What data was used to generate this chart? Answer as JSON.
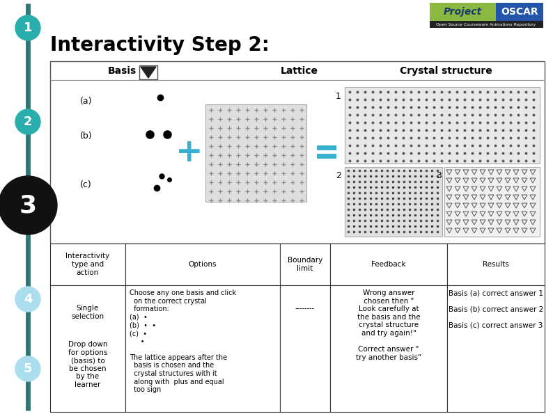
{
  "title": "Interactivity Step 2:",
  "bg_color": "#ffffff",
  "teal_line": "#2a8a7a",
  "step_numbers": [
    "1",
    "2",
    "3",
    "4",
    "5"
  ],
  "step_colors_fill": [
    "#2aadad",
    "#2aadad",
    "#111111",
    "#aaddee",
    "#aaddee"
  ],
  "table_headers": [
    "Interactivity\ntype and\naction",
    "Options",
    "Boundary\nlimit",
    "Feedback",
    "Results"
  ]
}
